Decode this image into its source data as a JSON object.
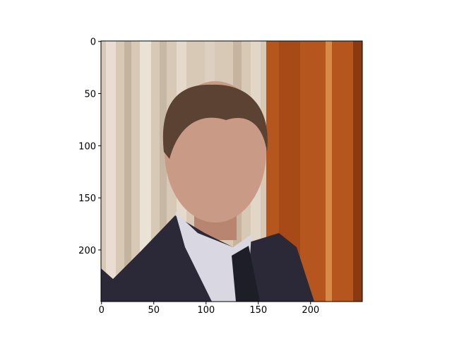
{
  "chart_data": {
    "type": "image",
    "xlim": [
      -0.5,
      249.5
    ],
    "ylim": [
      249.5,
      -0.5
    ],
    "xticks": [
      0,
      50,
      100,
      150,
      200
    ],
    "yticks": [
      0,
      50,
      100,
      150,
      200
    ]
  }
}
